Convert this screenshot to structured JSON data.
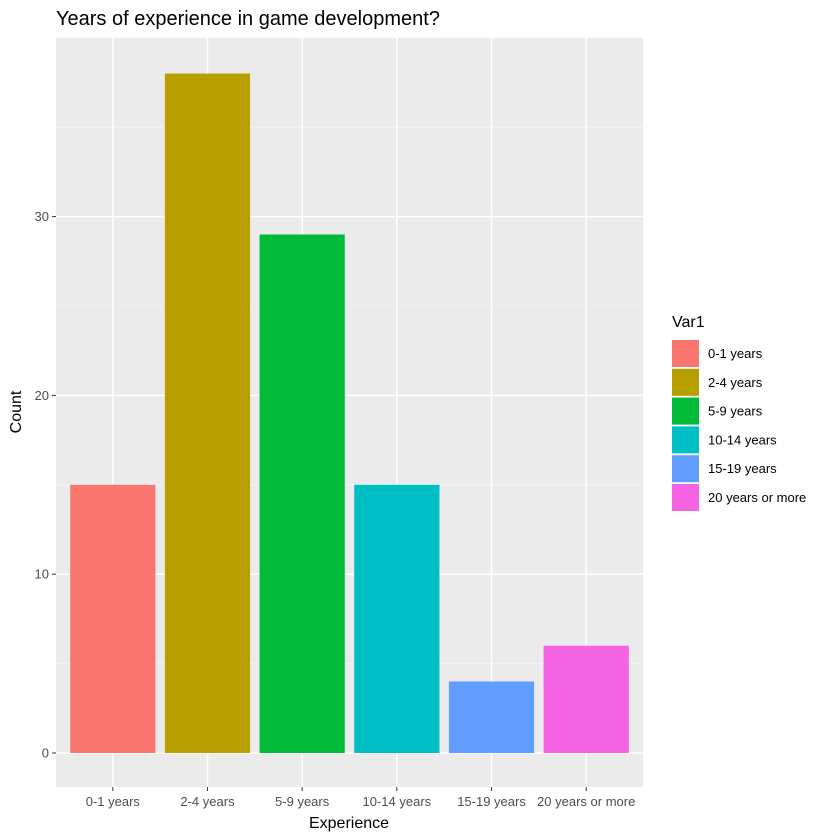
{
  "chart_data": {
    "type": "bar",
    "title": "Years of experience in game development?",
    "xlabel": "Experience",
    "ylabel": "Count",
    "categories": [
      "0-1 years",
      "2-4 years",
      "5-9 years",
      "10-14 years",
      "15-19 years",
      "20 years or more"
    ],
    "values": [
      15,
      38,
      29,
      15,
      4,
      6
    ],
    "colors": [
      "#F8766D",
      "#B79F00",
      "#00BA38",
      "#00BFC4",
      "#619CFF",
      "#F564E3"
    ],
    "ylim": [
      0,
      40
    ],
    "yticks": [
      0,
      10,
      20,
      30
    ],
    "grid": true,
    "legend": {
      "title": "Var1",
      "placement": "right",
      "entries": [
        "0-1 years",
        "2-4 years",
        "5-9 years",
        "10-14 years",
        "15-19 years",
        "20 years or more"
      ]
    }
  }
}
